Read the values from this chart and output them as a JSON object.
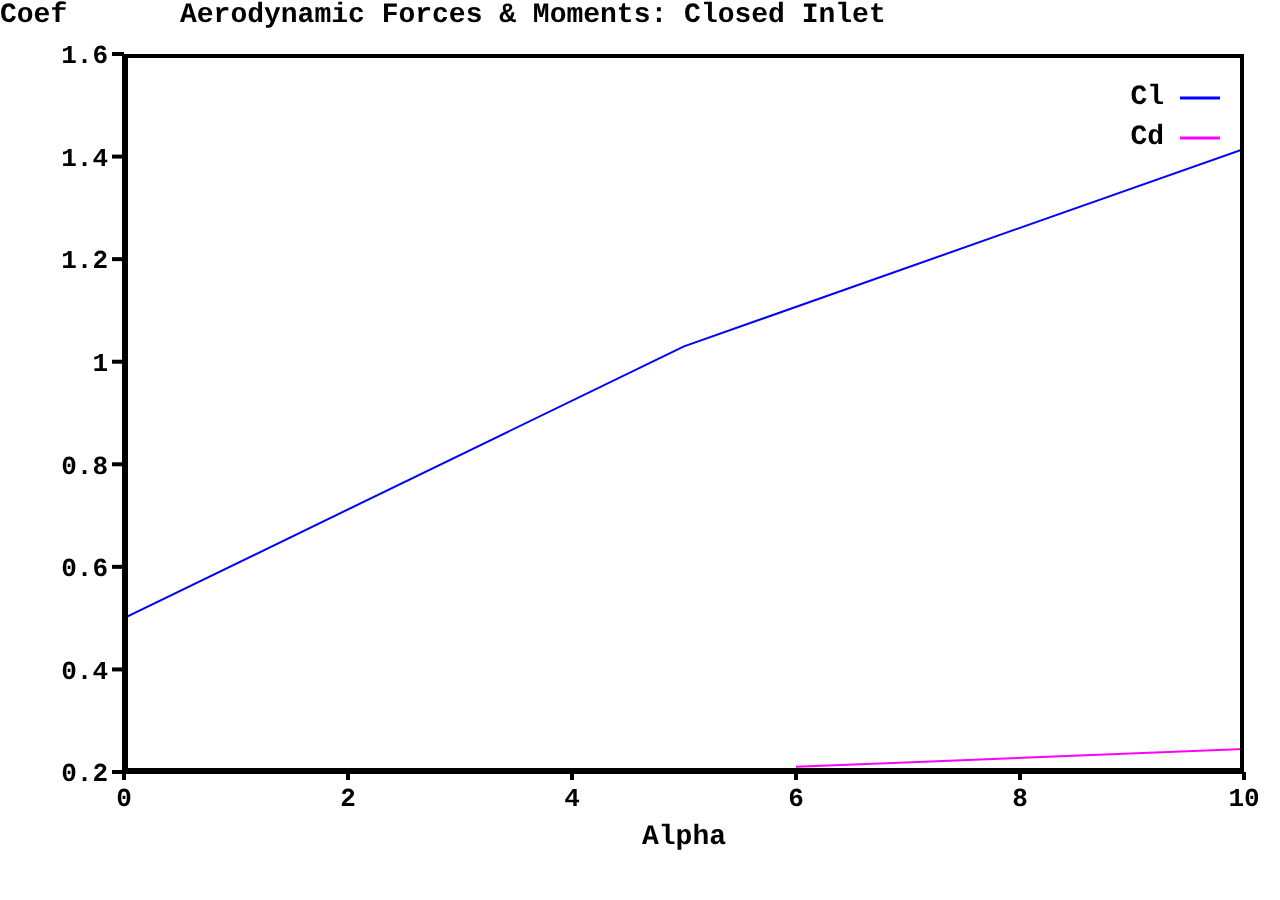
{
  "chart_data": {
    "type": "line",
    "title": "Aerodynamic Forces & Moments: Closed Inlet",
    "xlabel": "Alpha",
    "ylabel": "Coef",
    "xlim": [
      0,
      10
    ],
    "xticks": [
      0,
      2,
      4,
      6,
      8,
      10
    ],
    "ylim": [
      0.2,
      1.6
    ],
    "yticks": [
      0.2,
      0.4,
      0.6,
      0.8,
      1,
      1.2,
      1.4,
      1.6
    ],
    "grid": false,
    "legend": "top right",
    "marker": "none",
    "line_style": "solid",
    "series": [
      {
        "name": "Cl",
        "color": "#0000ff",
        "x": [
          0,
          5,
          10
        ],
        "values": [
          0.5,
          1.03,
          1.415
        ]
      },
      {
        "name": "Cd",
        "color": "#ff00ff",
        "x": [
          6,
          10
        ],
        "values": [
          0.21,
          0.245
        ]
      }
    ]
  }
}
